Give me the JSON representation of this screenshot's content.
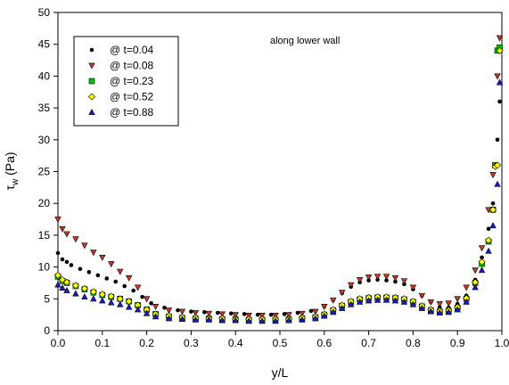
{
  "chart_data": {
    "type": "scatter",
    "xlabel": "y/L",
    "ylabel_main": "τ",
    "ylabel_sub": "w",
    "ylabel_rest": " (Pa)",
    "annotation": "along lower wall",
    "xlim": [
      0.0,
      1.0
    ],
    "ylim": [
      0,
      50
    ],
    "xticks": [
      0.0,
      0.1,
      0.2,
      0.3,
      0.4,
      0.5,
      0.6,
      0.7,
      0.8,
      0.9,
      1.0
    ],
    "xtick_labels": [
      "0.0",
      "0.1",
      "0.2",
      "0.3",
      "0.4",
      "0.5",
      "0.6",
      "0.7",
      "0.8",
      "0.9",
      "1.0"
    ],
    "yticks": [
      0,
      5,
      10,
      15,
      20,
      25,
      30,
      35,
      40,
      45,
      50
    ],
    "ytick_labels": [
      "0",
      "5",
      "10",
      "15",
      "20",
      "25",
      "30",
      "35",
      "40",
      "45",
      "50"
    ],
    "grid": false,
    "legend_position": "top-left",
    "series": [
      {
        "name": "@ t=0.04",
        "marker": "circle",
        "color": "#000000",
        "x": [
          0.0,
          0.01,
          0.02,
          0.03,
          0.05,
          0.07,
          0.09,
          0.11,
          0.13,
          0.15,
          0.17,
          0.19,
          0.21,
          0.24,
          0.27,
          0.3,
          0.33,
          0.36,
          0.39,
          0.42,
          0.45,
          0.48,
          0.51,
          0.54,
          0.57,
          0.6,
          0.62,
          0.64,
          0.66,
          0.68,
          0.7,
          0.72,
          0.74,
          0.76,
          0.78,
          0.8,
          0.82,
          0.84,
          0.86,
          0.88,
          0.9,
          0.92,
          0.94,
          0.955,
          0.97,
          0.98,
          0.99,
          0.995
        ],
        "y": [
          12.2,
          11.2,
          10.8,
          10.3,
          9.7,
          9.2,
          8.7,
          8.2,
          7.7,
          7.0,
          6.3,
          5.3,
          4.3,
          3.6,
          3.2,
          3.0,
          2.9,
          2.8,
          2.7,
          2.6,
          2.5,
          2.5,
          2.6,
          2.8,
          3.1,
          3.8,
          4.8,
          5.9,
          6.9,
          7.6,
          7.9,
          8.0,
          7.9,
          7.7,
          7.3,
          6.5,
          5.5,
          4.5,
          3.7,
          3.6,
          4.2,
          5.5,
          8.0,
          11.5,
          16.0,
          20.0,
          30.0,
          36.0
        ]
      },
      {
        "name": "@ t=0.08",
        "marker": "triangle-down",
        "color": "#c0392b",
        "x": [
          0.0,
          0.01,
          0.02,
          0.04,
          0.06,
          0.08,
          0.1,
          0.12,
          0.14,
          0.16,
          0.18,
          0.2,
          0.22,
          0.25,
          0.28,
          0.31,
          0.34,
          0.37,
          0.4,
          0.43,
          0.46,
          0.49,
          0.52,
          0.55,
          0.58,
          0.6,
          0.62,
          0.64,
          0.66,
          0.68,
          0.7,
          0.72,
          0.74,
          0.76,
          0.78,
          0.8,
          0.82,
          0.84,
          0.86,
          0.88,
          0.9,
          0.92,
          0.94,
          0.955,
          0.97,
          0.98,
          0.985,
          0.99,
          0.995
        ],
        "y": [
          17.5,
          16.0,
          15.2,
          14.4,
          13.4,
          12.3,
          11.5,
          10.5,
          9.3,
          8.3,
          6.8,
          5.0,
          3.8,
          3.2,
          3.0,
          2.8,
          2.7,
          2.6,
          2.5,
          2.4,
          2.4,
          2.4,
          2.5,
          2.7,
          3.0,
          3.8,
          4.8,
          6.0,
          7.2,
          8.0,
          8.4,
          8.5,
          8.5,
          8.3,
          7.8,
          6.8,
          5.5,
          4.5,
          4.2,
          4.3,
          5.0,
          6.8,
          9.5,
          13.0,
          19.0,
          24.5,
          26.0,
          40.0,
          46.0
        ]
      },
      {
        "name": "@ t=0.23",
        "marker": "square",
        "color": "#00c000",
        "x": [
          0.0,
          0.01,
          0.02,
          0.04,
          0.06,
          0.08,
          0.1,
          0.12,
          0.14,
          0.16,
          0.18,
          0.2,
          0.22,
          0.25,
          0.28,
          0.31,
          0.34,
          0.37,
          0.4,
          0.43,
          0.46,
          0.49,
          0.52,
          0.55,
          0.58,
          0.6,
          0.62,
          0.64,
          0.66,
          0.68,
          0.7,
          0.72,
          0.74,
          0.76,
          0.78,
          0.8,
          0.82,
          0.84,
          0.86,
          0.88,
          0.9,
          0.92,
          0.94,
          0.955,
          0.97,
          0.98,
          0.985,
          0.99,
          0.995
        ],
        "y": [
          8.5,
          7.8,
          7.5,
          7.0,
          6.5,
          6.0,
          5.6,
          5.3,
          5.0,
          4.6,
          4.0,
          3.3,
          2.6,
          2.2,
          2.0,
          1.9,
          1.9,
          1.8,
          1.8,
          1.7,
          1.7,
          1.7,
          1.8,
          1.9,
          2.1,
          2.5,
          3.2,
          3.9,
          4.5,
          4.9,
          5.1,
          5.2,
          5.2,
          5.1,
          4.9,
          4.5,
          3.8,
          3.2,
          3.0,
          3.1,
          3.6,
          5.0,
          7.5,
          10.5,
          14.0,
          19.0,
          26.0,
          44.0,
          44.5
        ]
      },
      {
        "name": "@ t=0.52",
        "marker": "diamond",
        "color": "#ffff00",
        "x": [
          0.0,
          0.01,
          0.02,
          0.04,
          0.06,
          0.08,
          0.1,
          0.12,
          0.14,
          0.16,
          0.18,
          0.2,
          0.22,
          0.25,
          0.28,
          0.31,
          0.34,
          0.37,
          0.4,
          0.43,
          0.46,
          0.49,
          0.52,
          0.55,
          0.58,
          0.6,
          0.62,
          0.64,
          0.66,
          0.68,
          0.7,
          0.72,
          0.74,
          0.76,
          0.78,
          0.8,
          0.82,
          0.84,
          0.86,
          0.88,
          0.9,
          0.92,
          0.94,
          0.955,
          0.97,
          0.98,
          0.985,
          0.99,
          0.995
        ],
        "y": [
          8.7,
          8.0,
          7.6,
          7.1,
          6.6,
          6.1,
          5.7,
          5.4,
          5.0,
          4.6,
          4.0,
          3.3,
          2.6,
          2.3,
          2.1,
          2.0,
          1.9,
          1.9,
          1.8,
          1.8,
          1.8,
          1.8,
          1.8,
          2.0,
          2.2,
          2.6,
          3.3,
          4.0,
          4.6,
          5.0,
          5.2,
          5.3,
          5.3,
          5.2,
          5.0,
          4.6,
          3.9,
          3.3,
          3.1,
          3.2,
          3.7,
          5.1,
          7.6,
          10.8,
          14.2,
          19.0,
          25.8,
          26.0,
          44.0
        ]
      },
      {
        "name": "@ t=0.88",
        "marker": "triangle-up",
        "color": "#1a1acc",
        "x": [
          0.0,
          0.01,
          0.02,
          0.04,
          0.06,
          0.08,
          0.1,
          0.12,
          0.14,
          0.16,
          0.18,
          0.2,
          0.22,
          0.25,
          0.28,
          0.31,
          0.34,
          0.37,
          0.4,
          0.43,
          0.46,
          0.49,
          0.52,
          0.55,
          0.58,
          0.6,
          0.62,
          0.64,
          0.66,
          0.68,
          0.7,
          0.72,
          0.74,
          0.76,
          0.78,
          0.8,
          0.82,
          0.84,
          0.86,
          0.88,
          0.9,
          0.92,
          0.94,
          0.955,
          0.97,
          0.98,
          0.99,
          0.995
        ],
        "y": [
          7.2,
          6.7,
          6.3,
          5.8,
          5.3,
          5.0,
          4.7,
          4.4,
          4.1,
          3.7,
          3.3,
          2.7,
          2.2,
          1.9,
          1.8,
          1.7,
          1.7,
          1.6,
          1.6,
          1.5,
          1.5,
          1.5,
          1.6,
          1.7,
          1.9,
          2.3,
          2.9,
          3.5,
          4.1,
          4.5,
          4.7,
          4.8,
          4.8,
          4.7,
          4.5,
          4.1,
          3.5,
          3.0,
          2.8,
          2.9,
          3.3,
          4.5,
          6.8,
          9.5,
          12.5,
          16.5,
          23.0,
          39.0
        ]
      }
    ]
  }
}
